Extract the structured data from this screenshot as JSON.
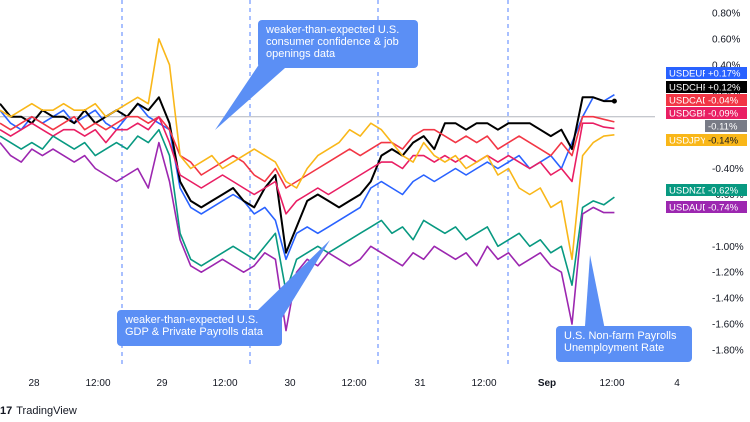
{
  "chart_data": {
    "type": "line",
    "title": "",
    "xlabel": "",
    "ylabel": "",
    "x_axis_labels": [
      "28",
      "12:00",
      "29",
      "12:00",
      "30",
      "12:00",
      "31",
      "12:00",
      "Sep",
      "12:00",
      "4"
    ],
    "y_ticks": [
      "0.80%",
      "0.60%",
      "0.40%",
      "0.20%",
      "-0.40%",
      "-0.60%",
      "-1.00%",
      "-1.20%",
      "-1.40%",
      "-1.60%",
      "-1.80%"
    ],
    "ylim": [
      -1.9,
      0.85
    ],
    "baseline": 0,
    "x_points": 60,
    "series": [
      {
        "name": "USDEUR",
        "color": "#2962ff",
        "last_label": "+0.17%",
        "values": [
          0.05,
          -0.05,
          -0.1,
          0.0,
          -0.05,
          0.0,
          0.05,
          -0.05,
          0.0,
          0.05,
          -0.05,
          -0.1,
          0.0,
          0.1,
          0.0,
          -0.05,
          -0.1,
          -0.55,
          -0.7,
          -0.75,
          -0.7,
          -0.65,
          -0.6,
          -0.65,
          -0.75,
          -0.7,
          -0.8,
          -1.1,
          -0.9,
          -0.85,
          -0.9,
          -0.85,
          -0.8,
          -0.75,
          -0.7,
          -0.55,
          -0.5,
          -0.55,
          -0.6,
          -0.5,
          -0.45,
          -0.5,
          -0.45,
          -0.4,
          -0.45,
          -0.4,
          -0.35,
          -0.4,
          -0.35,
          -0.3,
          -0.4,
          -0.35,
          -0.3,
          -0.4,
          -0.2,
          0.0,
          0.15,
          0.12,
          0.17
        ]
      },
      {
        "name": "USDCHF",
        "color": "#000000",
        "last_label": "+0.12%",
        "values": [
          0.1,
          0.0,
          0.0,
          -0.05,
          0.05,
          0.0,
          0.0,
          -0.05,
          0.05,
          -0.05,
          0.0,
          0.05,
          0.0,
          0.1,
          0.05,
          0.15,
          -0.05,
          -0.5,
          -0.65,
          -0.7,
          -0.65,
          -0.6,
          -0.55,
          -0.65,
          -0.7,
          -0.55,
          -0.45,
          -1.05,
          -0.85,
          -0.65,
          -0.6,
          -0.65,
          -0.7,
          -0.65,
          -0.6,
          -0.5,
          -0.3,
          -0.25,
          -0.3,
          -0.2,
          -0.15,
          -0.25,
          -0.05,
          -0.05,
          -0.1,
          -0.05,
          -0.05,
          -0.1,
          -0.05,
          -0.05,
          -0.05,
          -0.1,
          -0.15,
          -0.1,
          -0.25,
          0.15,
          0.15,
          0.12,
          0.12
        ]
      },
      {
        "name": "USDCAD",
        "color": "#f23645",
        "last_label": "-0.04%",
        "values": [
          -0.05,
          -0.1,
          -0.05,
          0.0,
          -0.05,
          -0.1,
          -0.05,
          0.0,
          -0.1,
          -0.05,
          -0.1,
          -0.05,
          0.0,
          0.0,
          -0.05,
          0.0,
          -0.1,
          -0.3,
          -0.35,
          -0.45,
          -0.4,
          -0.35,
          -0.3,
          -0.35,
          -0.45,
          -0.5,
          -0.4,
          -0.55,
          -0.5,
          -0.45,
          -0.4,
          -0.35,
          -0.3,
          -0.25,
          -0.3,
          -0.25,
          -0.2,
          -0.2,
          -0.25,
          -0.15,
          -0.1,
          -0.1,
          -0.15,
          -0.2,
          -0.15,
          -0.2,
          -0.15,
          -0.25,
          -0.2,
          -0.15,
          -0.2,
          -0.25,
          -0.3,
          -0.2,
          -0.3,
          0.0,
          0.0,
          -0.02,
          -0.04
        ]
      },
      {
        "name": "USDGBP",
        "color": "#e91e63",
        "last_label": "-0.09%",
        "values": [
          -0.1,
          -0.15,
          -0.1,
          -0.05,
          -0.1,
          -0.15,
          -0.1,
          -0.1,
          -0.15,
          -0.1,
          -0.2,
          -0.1,
          -0.1,
          -0.05,
          -0.1,
          0.0,
          -0.2,
          -0.45,
          -0.5,
          -0.55,
          -0.5,
          -0.45,
          -0.5,
          -0.55,
          -0.6,
          -0.55,
          -0.5,
          -0.75,
          -0.65,
          -0.6,
          -0.55,
          -0.6,
          -0.55,
          -0.5,
          -0.45,
          -0.4,
          -0.35,
          -0.35,
          -0.4,
          -0.3,
          -0.3,
          -0.35,
          -0.3,
          -0.35,
          -0.3,
          -0.35,
          -0.3,
          -0.35,
          -0.3,
          -0.35,
          -0.4,
          -0.35,
          -0.45,
          -0.4,
          -0.5,
          -0.05,
          -0.05,
          -0.08,
          -0.09
        ]
      },
      {
        "name": "USDJPY",
        "color": "#f9b719",
        "last_label": "-0.14%",
        "values": [
          0.05,
          0.0,
          0.05,
          0.1,
          0.05,
          0.05,
          0.1,
          0.05,
          0.05,
          0.1,
          0.0,
          0.05,
          0.1,
          0.15,
          0.1,
          0.6,
          0.4,
          -0.3,
          -0.4,
          -0.35,
          -0.3,
          -0.4,
          -0.35,
          -0.3,
          -0.25,
          -0.3,
          -0.35,
          -0.5,
          -0.55,
          -0.4,
          -0.3,
          -0.25,
          -0.2,
          -0.1,
          -0.15,
          -0.05,
          -0.1,
          -0.2,
          -0.3,
          -0.35,
          -0.2,
          -0.3,
          -0.35,
          -0.3,
          -0.4,
          -0.35,
          -0.3,
          -0.45,
          -0.4,
          -0.55,
          -0.6,
          -0.55,
          -0.7,
          -0.65,
          -1.1,
          -0.3,
          -0.2,
          -0.15,
          -0.14
        ]
      },
      {
        "name": "",
        "color": "#787b86",
        "last_label": "-0.11%",
        "values": []
      },
      {
        "name": "USDNZD",
        "color": "#089981",
        "last_label": "-0.62%",
        "values": [
          -0.15,
          -0.2,
          -0.25,
          -0.2,
          -0.25,
          -0.15,
          -0.2,
          -0.25,
          -0.2,
          -0.3,
          -0.25,
          -0.2,
          -0.25,
          -0.15,
          -0.2,
          -0.1,
          -0.3,
          -0.9,
          -1.1,
          -1.15,
          -1.1,
          -1.05,
          -1.0,
          -1.05,
          -1.1,
          -1.0,
          -0.9,
          -1.35,
          -1.1,
          -1.05,
          -1.0,
          -1.05,
          -1.0,
          -0.95,
          -0.9,
          -0.85,
          -0.8,
          -0.9,
          -0.85,
          -0.95,
          -0.8,
          -0.85,
          -0.9,
          -0.85,
          -0.95,
          -0.9,
          -0.85,
          -1.0,
          -0.95,
          -0.9,
          -1.0,
          -0.95,
          -1.05,
          -1.0,
          -1.3,
          -0.7,
          -0.65,
          -0.68,
          -0.62
        ]
      },
      {
        "name": "USDAUD",
        "color": "#9c27b0",
        "last_label": "-0.74%",
        "values": [
          -0.2,
          -0.3,
          -0.35,
          -0.25,
          -0.3,
          -0.25,
          -0.3,
          -0.35,
          -0.3,
          -0.4,
          -0.45,
          -0.5,
          -0.45,
          -0.4,
          -0.55,
          -0.2,
          -0.5,
          -0.95,
          -1.15,
          -1.2,
          -1.15,
          -1.1,
          -1.15,
          -1.2,
          -1.15,
          -1.05,
          -1.1,
          -1.65,
          -1.2,
          -1.1,
          -1.15,
          -1.05,
          -1.1,
          -1.15,
          -1.1,
          -1.0,
          -1.05,
          -1.1,
          -1.15,
          -1.05,
          -1.1,
          -1.0,
          -1.05,
          -1.1,
          -1.05,
          -1.15,
          -1.0,
          -1.1,
          -1.05,
          -1.15,
          -1.1,
          -1.05,
          -1.15,
          -1.2,
          -1.6,
          -0.75,
          -0.7,
          -0.74,
          -0.74
        ]
      }
    ],
    "legend_placement": "right"
  },
  "annotations": [
    {
      "id": "confidence",
      "text": "weaker-than-expected U.S.\nconsumer confidence &  job\nopenings data"
    },
    {
      "id": "gdp",
      "text": "weaker-than-expected U.S.\nGDP & Private Payrolls data"
    },
    {
      "id": "nfp",
      "text": "U.S. Non-farm Payrolls\nUnemployment Rate"
    }
  ],
  "footer": {
    "logo_text": "17",
    "brand": "TradingView"
  },
  "colors": {
    "grid_dash": "#2962ff",
    "zero_line": "#b2b5be",
    "background": "#ffffff"
  }
}
